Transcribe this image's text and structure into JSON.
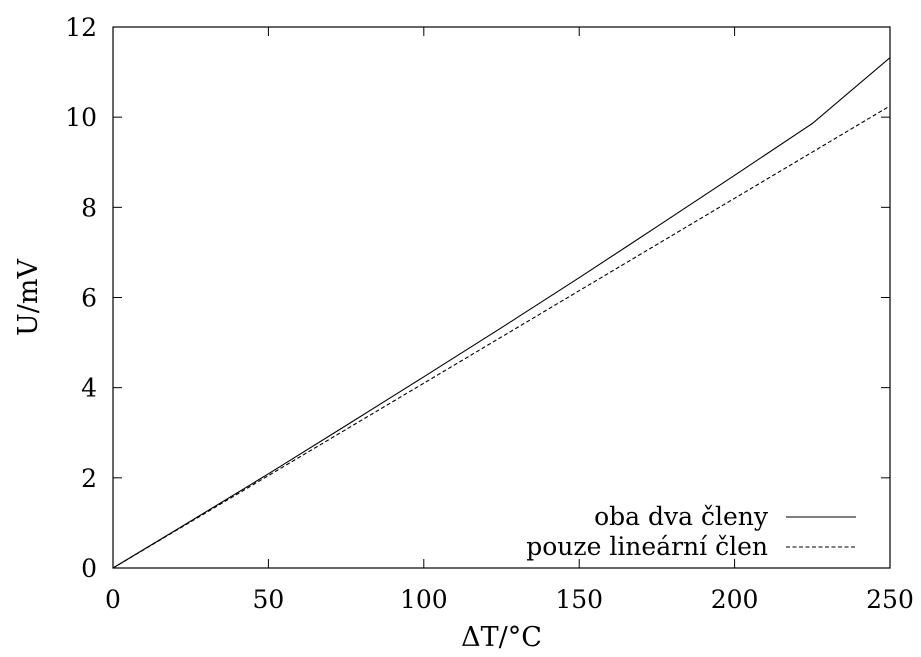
{
  "chart_data": {
    "type": "line",
    "xlabel": "ΔT/°C",
    "ylabel": "U/mV",
    "xlim": [
      0,
      250
    ],
    "ylim": [
      0,
      12
    ],
    "xticks": [
      "0",
      "50",
      "100",
      "150",
      "200",
      "250"
    ],
    "yticks": [
      "0",
      "2",
      "4",
      "6",
      "8",
      "10",
      "12"
    ],
    "grid": false,
    "legend_position": "bottom-right",
    "series": [
      {
        "name": "oba dva členy",
        "style": "solid",
        "color": "#000000",
        "x": [
          0,
          25,
          50,
          75,
          100,
          125,
          150,
          175,
          200,
          225,
          250
        ],
        "y": [
          0,
          1.04,
          2.09,
          3.16,
          4.24,
          5.33,
          6.44,
          7.57,
          8.71,
          9.86,
          11.32
        ]
      },
      {
        "name": "pouze lineární člen",
        "style": "dashed",
        "color": "#000000",
        "x": [
          0,
          50,
          100,
          150,
          200,
          250
        ],
        "y": [
          0,
          2.05,
          4.1,
          6.15,
          8.2,
          10.25
        ]
      }
    ]
  }
}
